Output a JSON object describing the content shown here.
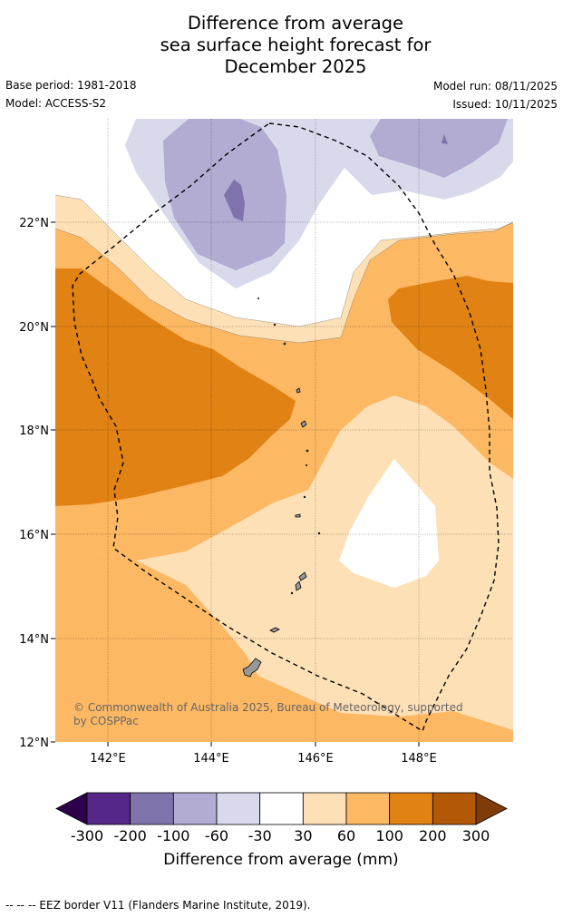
{
  "title": {
    "line1": "Difference from average",
    "line2": "sea surface height forecast for",
    "line3": "December 2025"
  },
  "meta": {
    "base_period": "Base period: 1981-2018",
    "model": "Model: ACCESS-S2",
    "model_run": "Model run: 08/11/2025",
    "issued": "Issued: 10/11/2025"
  },
  "axes": {
    "lat_labels": [
      "22°N",
      "20°N",
      "18°N",
      "16°N",
      "14°N",
      "12°N"
    ],
    "lon_labels": [
      "142°E",
      "144°E",
      "146°E",
      "148°E"
    ]
  },
  "copyright": {
    "line1": "© Commonwealth of Australia 2025, Bureau of Meteorology, supported",
    "line2": "by COSPPac"
  },
  "colorbar": {
    "ticks": [
      "-300",
      "-200",
      "-100",
      "-60",
      "-30",
      "30",
      "60",
      "100",
      "200",
      "300"
    ],
    "label": "Difference from average (mm)",
    "colors": {
      "below": "#2d004b",
      "c1": "#542788",
      "c2": "#8073ac",
      "c3": "#b2abd2",
      "c4": "#d8daeb",
      "c5": "#ffffff",
      "c6": "#fee0b6",
      "c7": "#fdb863",
      "c8": "#e08214",
      "c9": "#b35806",
      "above": "#7f3b08"
    }
  },
  "footer": "-- -- -- EEZ border V11 (Flanders Marine Institute, 2019)."
}
